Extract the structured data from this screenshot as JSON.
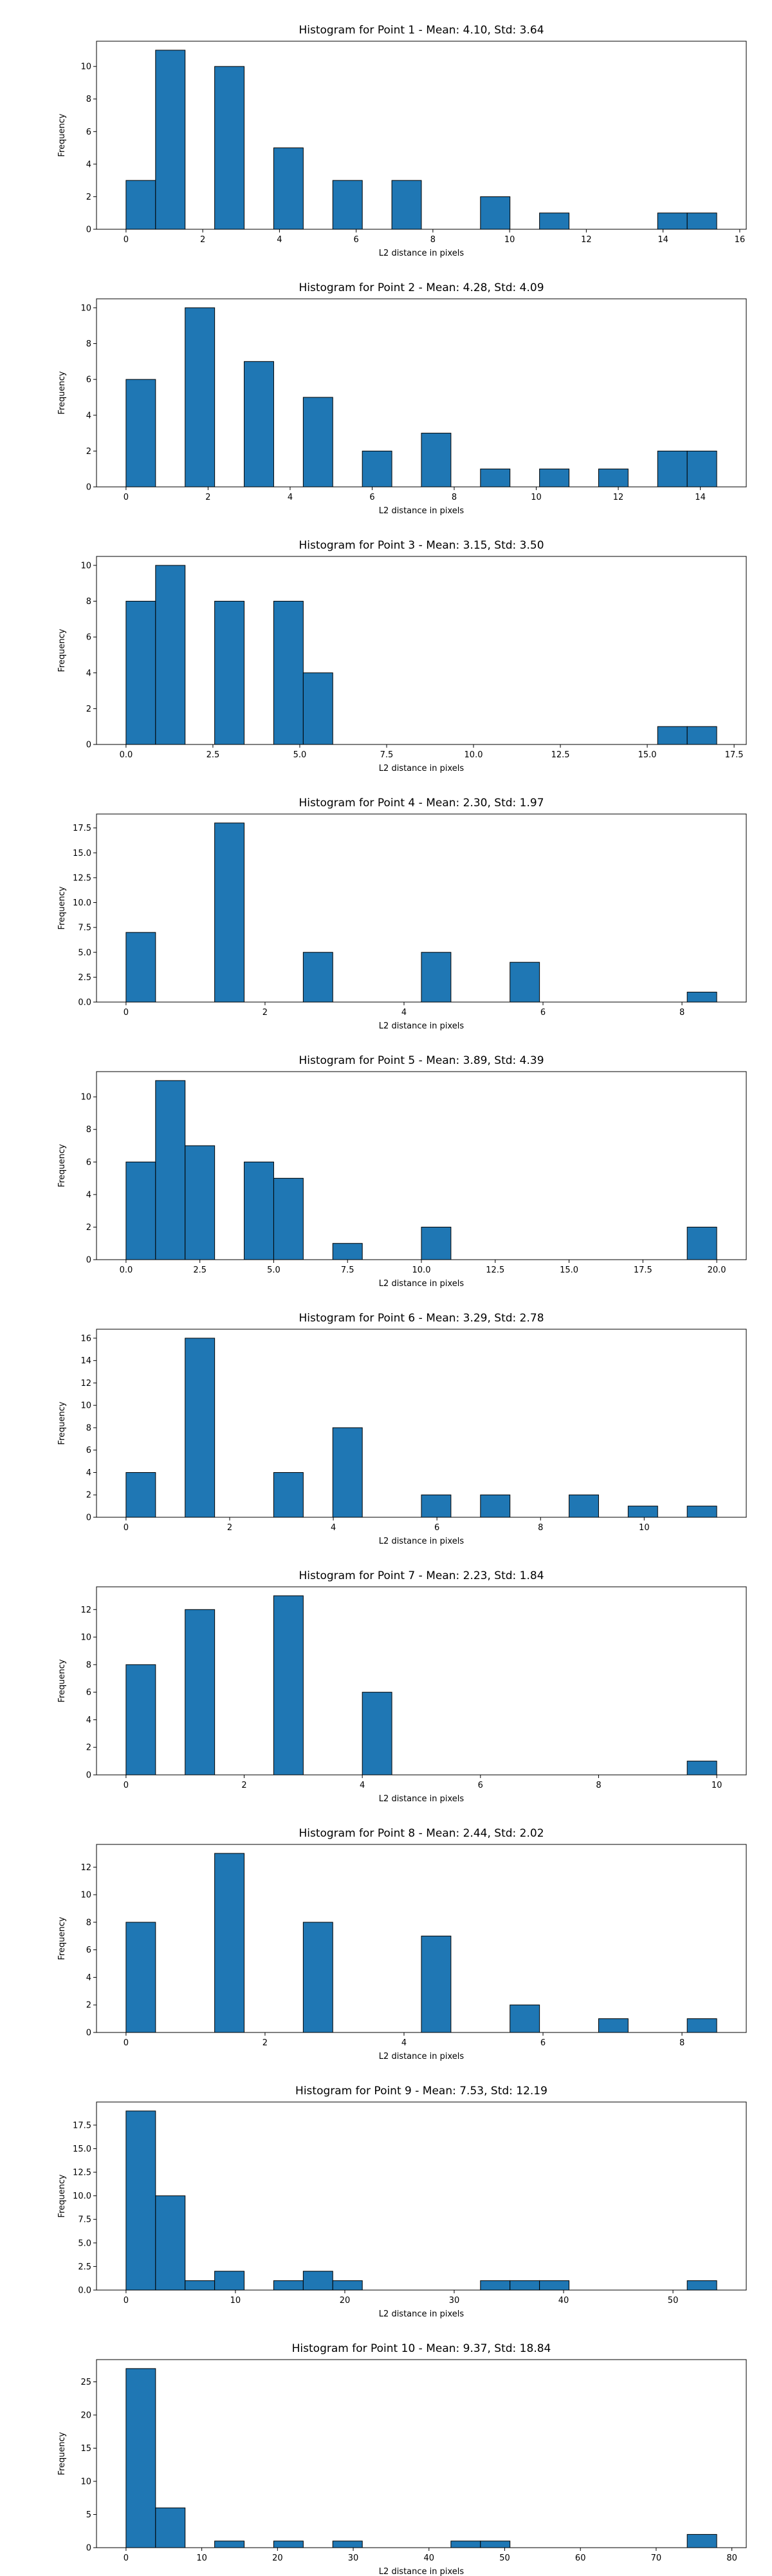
{
  "figure": {
    "background": "#ffffff",
    "bar_color": "#1f77b4",
    "edge_color": "#000000"
  },
  "chart_data": [
    {
      "type": "bar",
      "title": "Histogram for Point 1 - Mean: 4.10, Std: 3.64",
      "xlabel": "L2 distance in pixels",
      "ylabel": "Frequency",
      "xlim": [
        -0.77,
        16.17
      ],
      "ylim": [
        0,
        11.55
      ],
      "xticks": [
        0,
        2,
        4,
        6,
        8,
        10,
        12,
        14,
        16
      ],
      "yticks": [
        0,
        2,
        4,
        6,
        8,
        10
      ],
      "bin_edges": [
        0,
        0.77,
        1.54,
        2.31,
        3.08,
        3.85,
        4.62,
        5.39,
        6.16,
        6.93,
        7.7,
        8.47,
        9.24,
        10.01,
        10.78,
        11.55,
        12.32,
        13.09,
        13.86,
        14.63,
        15.4
      ],
      "values": [
        3,
        11,
        0,
        10,
        0,
        5,
        0,
        3,
        0,
        3,
        0,
        0,
        2,
        0,
        1,
        0,
        0,
        0,
        1,
        1
      ]
    },
    {
      "type": "bar",
      "title": "Histogram for Point 2 - Mean: 4.28, Std: 4.09",
      "xlabel": "L2 distance in pixels",
      "ylabel": "Frequency",
      "xlim": [
        -0.72,
        15.12
      ],
      "ylim": [
        0,
        10.5
      ],
      "xticks": [
        0,
        2,
        4,
        6,
        8,
        10,
        12,
        14
      ],
      "yticks": [
        0,
        2,
        4,
        6,
        8,
        10
      ],
      "bin_edges": [
        0,
        0.72,
        1.44,
        2.16,
        2.88,
        3.6,
        4.32,
        5.04,
        5.76,
        6.48,
        7.2,
        7.92,
        8.64,
        9.36,
        10.08,
        10.8,
        11.52,
        12.24,
        12.96,
        13.68,
        14.4
      ],
      "values": [
        6,
        0,
        10,
        0,
        7,
        0,
        5,
        0,
        2,
        0,
        3,
        0,
        1,
        0,
        1,
        0,
        1,
        0,
        2,
        2
      ]
    },
    {
      "type": "bar",
      "title": "Histogram for Point 3 - Mean: 3.15, Std: 3.50",
      "xlabel": "L2 distance in pixels",
      "ylabel": "Frequency",
      "xlim": [
        -0.85,
        17.85
      ],
      "ylim": [
        0,
        10.5
      ],
      "xticks": [
        0.0,
        2.5,
        5.0,
        7.5,
        10.0,
        12.5,
        15.0,
        17.5
      ],
      "xtick_labels": [
        "0.0",
        "2.5",
        "5.0",
        "7.5",
        "10.0",
        "12.5",
        "15.0",
        "17.5"
      ],
      "yticks": [
        0,
        2,
        4,
        6,
        8,
        10
      ],
      "bin_edges": [
        0,
        0.85,
        1.7,
        2.55,
        3.4,
        4.25,
        5.1,
        5.95,
        6.8,
        7.65,
        8.5,
        9.35,
        10.2,
        11.05,
        11.9,
        12.75,
        13.6,
        14.45,
        15.3,
        16.15,
        17.0
      ],
      "values": [
        8,
        10,
        0,
        8,
        0,
        8,
        4,
        0,
        0,
        0,
        0,
        0,
        0,
        0,
        0,
        0,
        0,
        0,
        1,
        1
      ]
    },
    {
      "type": "bar",
      "title": "Histogram for Point 4 - Mean: 2.30, Std: 1.97",
      "xlabel": "L2 distance in pixels",
      "ylabel": "Frequency",
      "xlim": [
        -0.425,
        8.925
      ],
      "ylim": [
        0,
        18.9
      ],
      "xticks": [
        0,
        2,
        4,
        6,
        8
      ],
      "yticks": [
        0.0,
        2.5,
        5.0,
        7.5,
        10.0,
        12.5,
        15.0,
        17.5
      ],
      "ytick_labels": [
        "0.0",
        "2.5",
        "5.0",
        "7.5",
        "10.0",
        "12.5",
        "15.0",
        "17.5"
      ],
      "bin_edges": [
        0,
        0.425,
        0.85,
        1.275,
        1.7,
        2.125,
        2.55,
        2.975,
        3.4,
        3.825,
        4.25,
        4.675,
        5.1,
        5.525,
        5.95,
        6.375,
        6.8,
        7.225,
        7.65,
        8.075,
        8.5
      ],
      "values": [
        7,
        0,
        0,
        18,
        0,
        0,
        5,
        0,
        0,
        0,
        5,
        0,
        0,
        4,
        0,
        0,
        0,
        0,
        0,
        1
      ]
    },
    {
      "type": "bar",
      "title": "Histogram for Point 5 - Mean: 3.89, Std: 4.39",
      "xlabel": "L2 distance in pixels",
      "ylabel": "Frequency",
      "xlim": [
        -1.0,
        21.0
      ],
      "ylim": [
        0,
        11.55
      ],
      "xticks": [
        0.0,
        2.5,
        5.0,
        7.5,
        10.0,
        12.5,
        15.0,
        17.5,
        20.0
      ],
      "xtick_labels": [
        "0.0",
        "2.5",
        "5.0",
        "7.5",
        "10.0",
        "12.5",
        "15.0",
        "17.5",
        "20.0"
      ],
      "yticks": [
        0,
        2,
        4,
        6,
        8,
        10
      ],
      "bin_edges": [
        0,
        1,
        2,
        3,
        4,
        5,
        6,
        7,
        8,
        9,
        10,
        11,
        12,
        13,
        14,
        15,
        16,
        17,
        18,
        19,
        20
      ],
      "values": [
        6,
        11,
        7,
        0,
        6,
        5,
        0,
        1,
        0,
        0,
        2,
        0,
        0,
        0,
        0,
        0,
        0,
        0,
        0,
        2
      ]
    },
    {
      "type": "bar",
      "title": "Histogram for Point 6 - Mean: 3.29, Std: 2.78",
      "xlabel": "L2 distance in pixels",
      "ylabel": "Frequency",
      "xlim": [
        -0.57,
        11.97
      ],
      "ylim": [
        0,
        16.8
      ],
      "xticks": [
        0,
        2,
        4,
        6,
        8,
        10
      ],
      "yticks": [
        0,
        2,
        4,
        6,
        8,
        10,
        12,
        14,
        16
      ],
      "bin_edges": [
        0,
        0.57,
        1.14,
        1.71,
        2.28,
        2.85,
        3.42,
        3.99,
        4.56,
        5.13,
        5.7,
        6.27,
        6.84,
        7.41,
        7.98,
        8.55,
        9.12,
        9.69,
        10.26,
        10.83,
        11.4
      ],
      "values": [
        4,
        0,
        16,
        0,
        0,
        4,
        0,
        8,
        0,
        0,
        2,
        0,
        2,
        0,
        0,
        2,
        0,
        1,
        0,
        1
      ]
    },
    {
      "type": "bar",
      "title": "Histogram for Point 7 - Mean: 2.23, Std: 1.84",
      "xlabel": "L2 distance in pixels",
      "ylabel": "Frequency",
      "xlim": [
        -0.5,
        10.5
      ],
      "ylim": [
        0,
        13.65
      ],
      "xticks": [
        0,
        2,
        4,
        6,
        8,
        10
      ],
      "yticks": [
        0,
        2,
        4,
        6,
        8,
        10,
        12
      ],
      "bin_edges": [
        0,
        0.5,
        1.0,
        1.5,
        2.0,
        2.5,
        3.0,
        3.5,
        4.0,
        4.5,
        5.0,
        5.5,
        6.0,
        6.5,
        7.0,
        7.5,
        8.0,
        8.5,
        9.0,
        9.5,
        10.0
      ],
      "values": [
        8,
        0,
        12,
        0,
        0,
        13,
        0,
        0,
        6,
        0,
        0,
        0,
        0,
        0,
        0,
        0,
        0,
        0,
        0,
        1
      ]
    },
    {
      "type": "bar",
      "title": "Histogram for Point 8 - Mean: 2.44, Std: 2.02",
      "xlabel": "L2 distance in pixels",
      "ylabel": "Frequency",
      "xlim": [
        -0.425,
        8.925
      ],
      "ylim": [
        0,
        13.65
      ],
      "xticks": [
        0,
        2,
        4,
        6,
        8
      ],
      "yticks": [
        0,
        2,
        4,
        6,
        8,
        10,
        12
      ],
      "bin_edges": [
        0,
        0.425,
        0.85,
        1.275,
        1.7,
        2.125,
        2.55,
        2.975,
        3.4,
        3.825,
        4.25,
        4.675,
        5.1,
        5.525,
        5.95,
        6.375,
        6.8,
        7.225,
        7.65,
        8.075,
        8.5
      ],
      "values": [
        8,
        0,
        0,
        13,
        0,
        0,
        8,
        0,
        0,
        0,
        7,
        0,
        0,
        2,
        0,
        0,
        1,
        0,
        0,
        1
      ]
    },
    {
      "type": "bar",
      "title": "Histogram for Point 9 - Mean: 7.53, Std: 12.19",
      "xlabel": "L2 distance in pixels",
      "ylabel": "Frequency",
      "xlim": [
        -2.7,
        56.7
      ],
      "ylim": [
        0,
        19.95
      ],
      "xticks": [
        0,
        10,
        20,
        30,
        40,
        50
      ],
      "yticks": [
        0.0,
        2.5,
        5.0,
        7.5,
        10.0,
        12.5,
        15.0,
        17.5
      ],
      "ytick_labels": [
        "0.0",
        "2.5",
        "5.0",
        "7.5",
        "10.0",
        "12.5",
        "15.0",
        "17.5"
      ],
      "bin_edges": [
        0,
        2.7,
        5.4,
        8.1,
        10.8,
        13.5,
        16.2,
        18.9,
        21.6,
        24.3,
        27.0,
        29.7,
        32.4,
        35.1,
        37.8,
        40.5,
        43.2,
        45.9,
        48.6,
        51.3,
        54.0
      ],
      "values": [
        19,
        10,
        1,
        2,
        0,
        1,
        2,
        1,
        0,
        0,
        0,
        0,
        1,
        1,
        1,
        0,
        0,
        0,
        0,
        1
      ]
    },
    {
      "type": "bar",
      "title": "Histogram for Point 10 - Mean: 9.37, Std: 18.84",
      "xlabel": "L2 distance in pixels",
      "ylabel": "Frequency",
      "xlim": [
        -3.9,
        81.9
      ],
      "ylim": [
        0,
        28.35
      ],
      "xticks": [
        0,
        10,
        20,
        30,
        40,
        50,
        60,
        70,
        80
      ],
      "yticks": [
        0,
        5,
        10,
        15,
        20,
        25
      ],
      "bin_edges": [
        0,
        3.9,
        7.8,
        11.7,
        15.6,
        19.5,
        23.4,
        27.3,
        31.2,
        35.1,
        39.0,
        42.9,
        46.8,
        50.7,
        54.6,
        58.5,
        62.4,
        66.3,
        70.2,
        74.1,
        78.0
      ],
      "values": [
        27,
        6,
        0,
        1,
        0,
        1,
        0,
        1,
        0,
        0,
        0,
        1,
        1,
        0,
        0,
        0,
        0,
        0,
        0,
        2
      ]
    }
  ]
}
